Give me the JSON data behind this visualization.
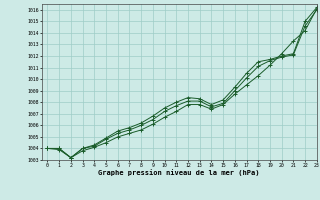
{
  "xlabel": "Graphe pression niveau de la mer (hPa)",
  "ylim": [
    1003,
    1016.5
  ],
  "xlim": [
    -0.5,
    23
  ],
  "yticks": [
    1003,
    1004,
    1005,
    1006,
    1007,
    1008,
    1009,
    1010,
    1011,
    1012,
    1013,
    1014,
    1015,
    1016
  ],
  "xticks": [
    0,
    1,
    2,
    3,
    4,
    5,
    6,
    7,
    8,
    9,
    10,
    11,
    12,
    13,
    14,
    15,
    16,
    17,
    18,
    19,
    20,
    21,
    22,
    23
  ],
  "background_color": "#cdeae6",
  "grid_color": "#9ecdc7",
  "line_color": "#1a5c2a",
  "series1": [
    1004.0,
    1003.9,
    1003.2,
    1003.8,
    1004.1,
    1004.5,
    1005.0,
    1005.3,
    1005.6,
    1006.1,
    1006.7,
    1007.2,
    1007.8,
    1007.8,
    1007.4,
    1007.8,
    1008.7,
    1009.5,
    1010.3,
    1011.2,
    1012.2,
    1013.3,
    1014.2,
    1016.1
  ],
  "series2": [
    1004.0,
    1004.0,
    1003.2,
    1004.0,
    1004.3,
    1004.9,
    1005.5,
    1005.8,
    1006.2,
    1006.8,
    1007.5,
    1008.0,
    1008.4,
    1008.3,
    1007.8,
    1008.2,
    1009.3,
    1010.5,
    1011.5,
    1011.7,
    1012.0,
    1012.2,
    1015.0,
    1016.2
  ],
  "series3": [
    1004.0,
    1004.0,
    1003.2,
    1004.0,
    1004.2,
    1004.8,
    1005.3,
    1005.6,
    1006.0,
    1006.5,
    1007.2,
    1007.7,
    1008.1,
    1008.1,
    1007.6,
    1007.9,
    1009.0,
    1010.1,
    1011.1,
    1011.6,
    1011.9,
    1012.1,
    1014.6,
    1016.0
  ]
}
